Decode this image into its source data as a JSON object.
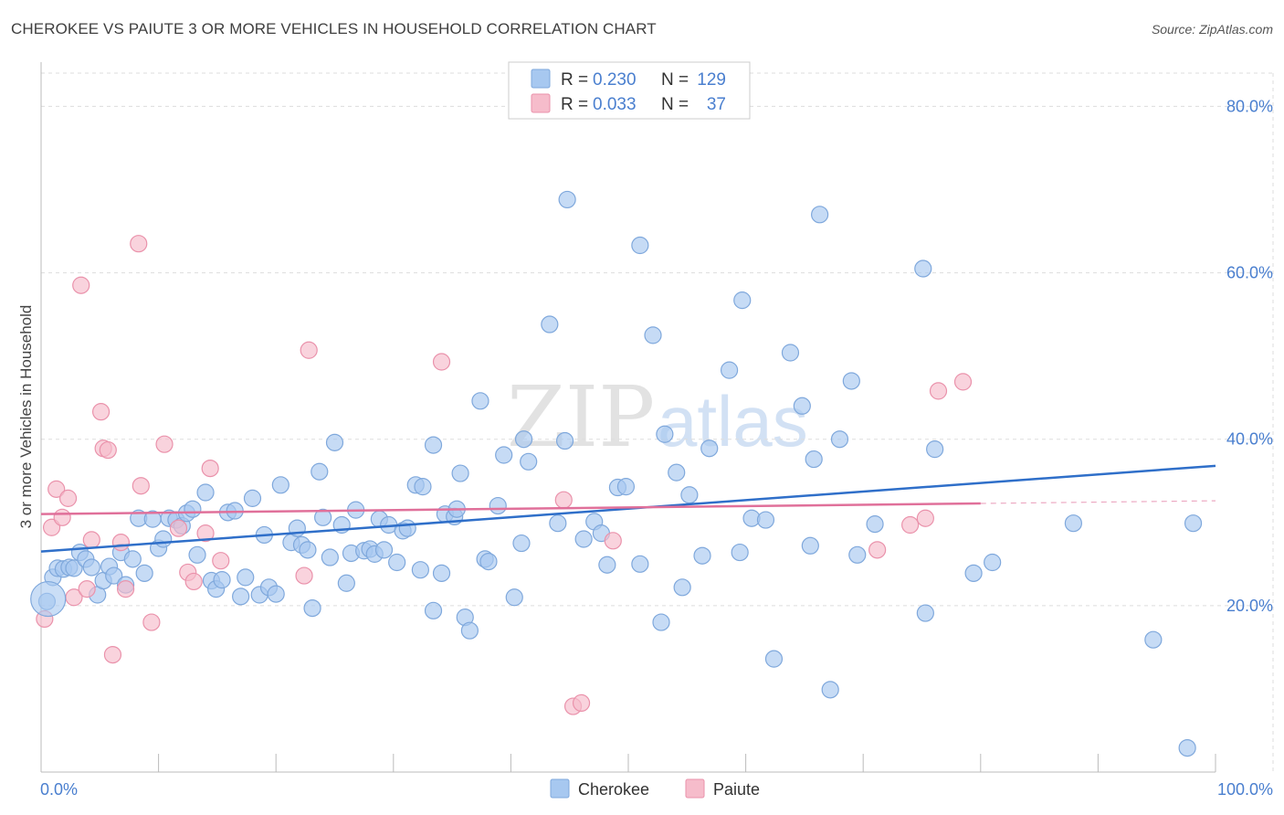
{
  "title": "CHEROKEE VS PAIUTE 3 OR MORE VEHICLES IN HOUSEHOLD CORRELATION CHART",
  "source": "Source: ZipAtlas.com",
  "watermark": {
    "bold": "ZIP",
    "light": "atlas"
  },
  "colors": {
    "blue_fill": "#a7c8f0",
    "blue_stroke": "#7fa8dc",
    "blue_line": "#2f6fc9",
    "pink_fill": "#f6bccb",
    "pink_stroke": "#ea92ab",
    "pink_line": "#e0709a",
    "tick_label": "#4a7fcf",
    "grid": "#dddddd"
  },
  "legend_top": [
    {
      "series": "Cherokee",
      "r_label": "R =",
      "r_value": "0.230",
      "n_label": "N =",
      "n_value": "129"
    },
    {
      "series": "Paiute",
      "r_label": "R =",
      "r_value": "0.033",
      "n_label": "N =",
      "n_value": "37"
    }
  ],
  "legend_bottom": [
    "Cherokee",
    "Paiute"
  ],
  "chart_data": {
    "type": "scatter",
    "title": "CHEROKEE VS PAIUTE 3 OR MORE VEHICLES IN HOUSEHOLD CORRELATION CHART",
    "xlabel": "",
    "ylabel": "3 or more Vehicles in Household",
    "xlim": [
      0,
      100
    ],
    "ylim": [
      0,
      84
    ],
    "x_tick_labels": [
      "0.0%",
      "100.0%"
    ],
    "y_ticks": [
      20,
      40,
      60,
      80
    ],
    "y_tick_labels": [
      "20.0%",
      "40.0%",
      "60.0%",
      "80.0%"
    ],
    "grid": true,
    "legend": "top-center",
    "series": [
      {
        "name": "Cherokee",
        "r": 0.23,
        "n": 129,
        "trend": {
          "x": [
            0,
            100
          ],
          "y": [
            26.5,
            36.8
          ],
          "solid_to": 100
        },
        "points": [
          [
            0.5,
            20.5
          ],
          [
            1.0,
            23.4
          ],
          [
            1.4,
            24.5
          ],
          [
            1.9,
            24.4
          ],
          [
            2.4,
            24.6
          ],
          [
            2.8,
            24.5
          ],
          [
            3.3,
            26.4
          ],
          [
            3.8,
            25.6
          ],
          [
            4.3,
            24.6
          ],
          [
            4.8,
            21.3
          ],
          [
            5.3,
            23.0
          ],
          [
            5.8,
            24.7
          ],
          [
            6.2,
            23.6
          ],
          [
            6.8,
            26.4
          ],
          [
            7.2,
            22.5
          ],
          [
            7.8,
            25.6
          ],
          [
            8.3,
            30.5
          ],
          [
            8.8,
            23.9
          ],
          [
            9.5,
            30.4
          ],
          [
            10.0,
            26.9
          ],
          [
            10.4,
            28.0
          ],
          [
            10.9,
            30.5
          ],
          [
            11.5,
            30.3
          ],
          [
            12.0,
            29.6
          ],
          [
            12.4,
            31.1
          ],
          [
            12.9,
            31.6
          ],
          [
            13.3,
            26.1
          ],
          [
            14.0,
            33.6
          ],
          [
            14.5,
            23.0
          ],
          [
            14.9,
            22.0
          ],
          [
            15.4,
            23.1
          ],
          [
            15.9,
            31.2
          ],
          [
            16.5,
            31.4
          ],
          [
            17.0,
            21.1
          ],
          [
            17.4,
            23.4
          ],
          [
            18.0,
            32.9
          ],
          [
            18.6,
            21.3
          ],
          [
            19.0,
            28.5
          ],
          [
            19.4,
            22.2
          ],
          [
            20.0,
            21.4
          ],
          [
            20.4,
            34.5
          ],
          [
            21.3,
            27.6
          ],
          [
            21.8,
            29.3
          ],
          [
            22.2,
            27.3
          ],
          [
            22.7,
            26.7
          ],
          [
            23.1,
            19.7
          ],
          [
            23.7,
            36.1
          ],
          [
            24.0,
            30.6
          ],
          [
            24.6,
            25.8
          ],
          [
            25.0,
            39.6
          ],
          [
            25.6,
            29.7
          ],
          [
            26.0,
            22.7
          ],
          [
            26.4,
            26.3
          ],
          [
            26.8,
            31.5
          ],
          [
            27.5,
            26.6
          ],
          [
            28.0,
            26.8
          ],
          [
            28.4,
            26.2
          ],
          [
            28.8,
            30.4
          ],
          [
            29.2,
            26.7
          ],
          [
            29.6,
            29.7
          ],
          [
            30.3,
            25.2
          ],
          [
            30.8,
            29.0
          ],
          [
            31.2,
            29.3
          ],
          [
            31.9,
            34.5
          ],
          [
            32.3,
            24.3
          ],
          [
            32.5,
            34.3
          ],
          [
            33.4,
            39.3
          ],
          [
            33.4,
            19.4
          ],
          [
            34.1,
            23.9
          ],
          [
            34.4,
            31.0
          ],
          [
            35.2,
            30.7
          ],
          [
            35.4,
            31.6
          ],
          [
            35.7,
            35.9
          ],
          [
            36.1,
            18.6
          ],
          [
            36.5,
            17.0
          ],
          [
            37.4,
            44.6
          ],
          [
            37.8,
            25.6
          ],
          [
            38.1,
            25.3
          ],
          [
            38.9,
            32.0
          ],
          [
            39.4,
            38.1
          ],
          [
            40.3,
            21.0
          ],
          [
            40.9,
            27.5
          ],
          [
            41.1,
            40.0
          ],
          [
            41.5,
            37.3
          ],
          [
            43.3,
            53.8
          ],
          [
            44.0,
            29.9
          ],
          [
            44.6,
            39.8
          ],
          [
            44.8,
            68.8
          ],
          [
            46.2,
            28.0
          ],
          [
            47.1,
            30.1
          ],
          [
            47.7,
            28.7
          ],
          [
            48.2,
            24.9
          ],
          [
            49.1,
            34.2
          ],
          [
            49.8,
            34.3
          ],
          [
            51.0,
            63.3
          ],
          [
            51.0,
            25.0
          ],
          [
            52.1,
            52.5
          ],
          [
            52.8,
            18.0
          ],
          [
            53.1,
            40.6
          ],
          [
            54.1,
            36.0
          ],
          [
            54.6,
            22.2
          ],
          [
            55.2,
            33.3
          ],
          [
            56.3,
            26.0
          ],
          [
            56.9,
            38.9
          ],
          [
            58.6,
            48.3
          ],
          [
            59.5,
            26.4
          ],
          [
            59.7,
            56.7
          ],
          [
            60.5,
            30.5
          ],
          [
            61.7,
            30.3
          ],
          [
            62.4,
            13.6
          ],
          [
            63.8,
            50.4
          ],
          [
            64.8,
            44.0
          ],
          [
            65.5,
            27.2
          ],
          [
            65.8,
            37.6
          ],
          [
            66.3,
            67.0
          ],
          [
            67.2,
            9.9
          ],
          [
            68.0,
            40.0
          ],
          [
            69.0,
            47.0
          ],
          [
            69.5,
            26.1
          ],
          [
            71.0,
            29.8
          ],
          [
            75.1,
            60.5
          ],
          [
            75.3,
            19.1
          ],
          [
            76.1,
            38.8
          ],
          [
            79.4,
            23.9
          ],
          [
            81.0,
            25.2
          ],
          [
            87.9,
            29.9
          ],
          [
            94.7,
            15.9
          ],
          [
            97.6,
            2.9
          ],
          [
            98.1,
            29.9
          ]
        ]
      },
      {
        "name": "Paiute",
        "r": 0.033,
        "n": 37,
        "trend": {
          "x": [
            0,
            100
          ],
          "y": [
            31.0,
            32.6
          ],
          "solid_to": 80
        },
        "points": [
          [
            0.3,
            18.4
          ],
          [
            0.9,
            29.4
          ],
          [
            1.3,
            34.0
          ],
          [
            1.8,
            30.6
          ],
          [
            2.3,
            32.9
          ],
          [
            2.8,
            21.0
          ],
          [
            3.4,
            58.5
          ],
          [
            3.9,
            22.0
          ],
          [
            4.3,
            27.9
          ],
          [
            5.1,
            43.3
          ],
          [
            5.3,
            38.9
          ],
          [
            5.7,
            38.7
          ],
          [
            6.1,
            14.1
          ],
          [
            6.8,
            27.6
          ],
          [
            7.2,
            22.0
          ],
          [
            8.3,
            63.5
          ],
          [
            8.5,
            34.4
          ],
          [
            9.4,
            18.0
          ],
          [
            10.5,
            39.4
          ],
          [
            11.7,
            29.3
          ],
          [
            12.5,
            24.0
          ],
          [
            13.0,
            22.9
          ],
          [
            14.0,
            28.7
          ],
          [
            14.4,
            36.5
          ],
          [
            15.3,
            25.4
          ],
          [
            22.4,
            23.6
          ],
          [
            22.8,
            50.7
          ],
          [
            34.1,
            49.3
          ],
          [
            44.5,
            32.7
          ],
          [
            45.3,
            7.9
          ],
          [
            46.0,
            8.3
          ],
          [
            48.7,
            27.8
          ],
          [
            71.2,
            26.7
          ],
          [
            74.0,
            29.7
          ],
          [
            75.3,
            30.5
          ],
          [
            76.4,
            45.8
          ],
          [
            78.5,
            46.9
          ]
        ]
      }
    ]
  }
}
